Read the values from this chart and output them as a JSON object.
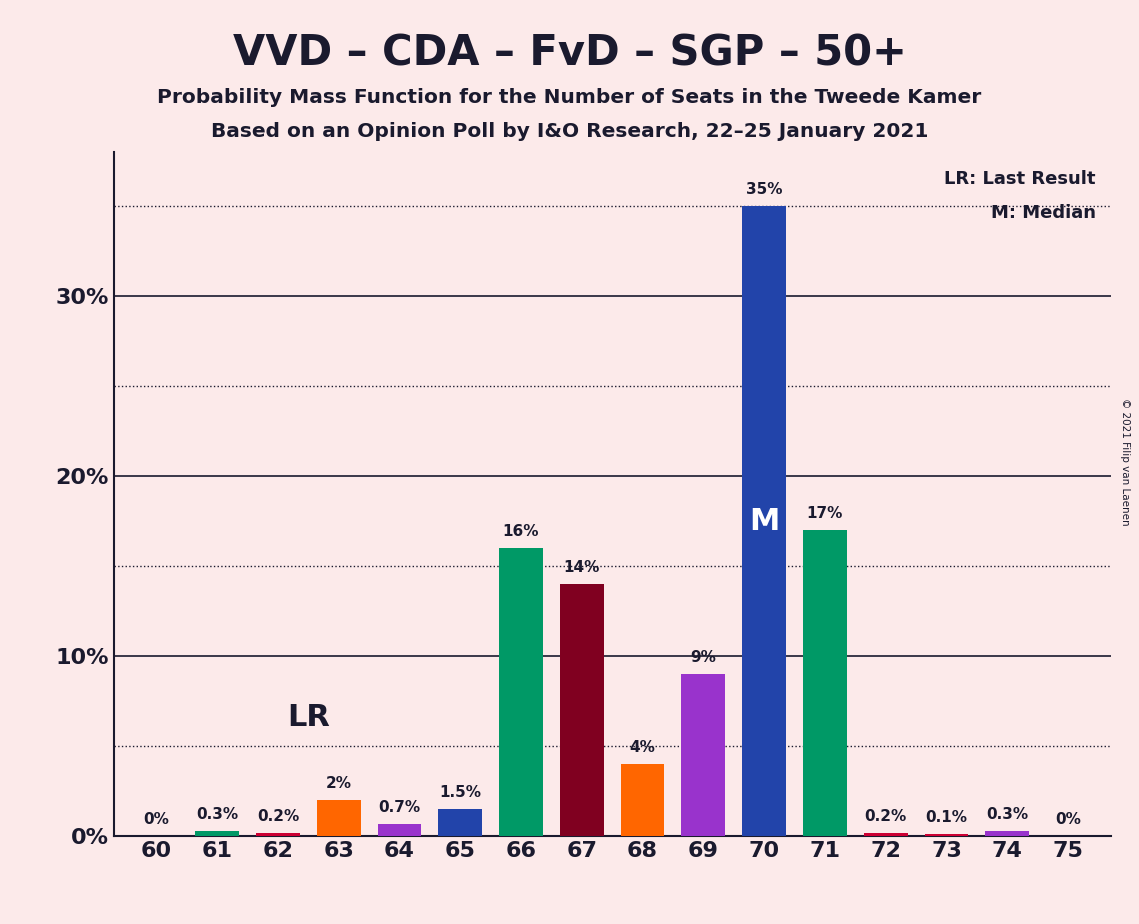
{
  "title": "VVD – CDA – FvD – SGP – 50+",
  "subtitle1": "Probability Mass Function for the Number of Seats in the Tweede Kamer",
  "subtitle2": "Based on an Opinion Poll by I&O Research, 22–25 January 2021",
  "copyright": "© 2021 Filip van Laenen",
  "seats": [
    60,
    61,
    62,
    63,
    64,
    65,
    66,
    67,
    68,
    69,
    70,
    71,
    72,
    73,
    74,
    75
  ],
  "values": [
    0.0,
    0.3,
    0.2,
    2.0,
    0.7,
    1.5,
    16.0,
    14.0,
    4.0,
    9.0,
    35.0,
    17.0,
    0.2,
    0.1,
    0.3,
    0.0
  ],
  "bar_colors": [
    "#009966",
    "#009966",
    "#CC0033",
    "#FF6600",
    "#9933CC",
    "#2244AA",
    "#009966",
    "#800020",
    "#FF6600",
    "#9933CC",
    "#2244AA",
    "#009966",
    "#CC0033",
    "#CC0033",
    "#9933CC",
    "#9933CC"
  ],
  "LR_seat": 64,
  "median_seat": 70,
  "background_color": "#FCEAEA",
  "solid_lines": [
    10,
    20,
    30
  ],
  "dotted_lines": [
    5,
    15,
    25,
    35
  ],
  "ytick_positions": [
    0,
    10,
    20,
    30
  ],
  "ytick_labels": [
    "0%",
    "10%",
    "20%",
    "30%"
  ],
  "ylim": [
    0,
    38
  ],
  "xlim_left": 59.3,
  "xlim_right": 75.7
}
